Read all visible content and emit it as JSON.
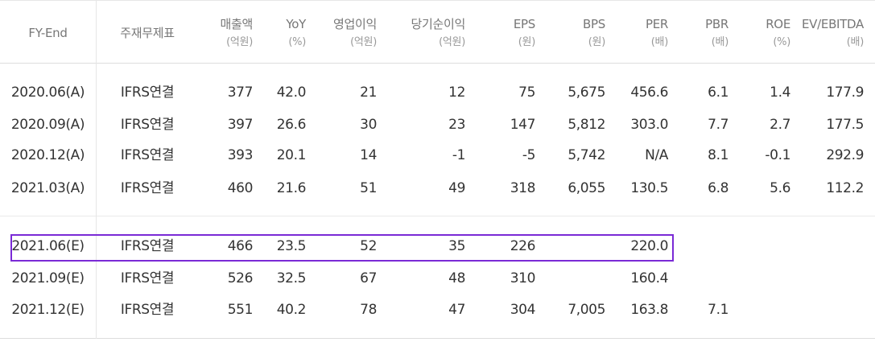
{
  "headers": {
    "fy": {
      "label": "FY-End"
    },
    "fs": {
      "label": "주재무제표"
    },
    "sales": {
      "label": "매출액",
      "unit": "(억원)"
    },
    "yoy": {
      "label": "YoY",
      "unit": "(%)"
    },
    "op": {
      "label": "영업이익",
      "unit": "(억원)"
    },
    "net": {
      "label": "당기순이익",
      "unit": "(억원)"
    },
    "eps": {
      "label": "EPS",
      "unit": "(원)"
    },
    "bps": {
      "label": "BPS",
      "unit": "(원)"
    },
    "per": {
      "label": "PER",
      "unit": "(배)"
    },
    "pbr": {
      "label": "PBR",
      "unit": "(배)"
    },
    "roe": {
      "label": "ROE",
      "unit": "(%)"
    },
    "ev": {
      "label": "EV/EBITDA",
      "unit": "(배)"
    }
  },
  "rows": [
    {
      "fy": "2020.06(A)",
      "fs": "IFRS연결",
      "sales": "377",
      "yoy": "42.0",
      "op": "21",
      "net": "12",
      "eps": "75",
      "bps": "5,675",
      "per": "456.6",
      "pbr": "6.1",
      "roe": "1.4",
      "ev": "177.9"
    },
    {
      "fy": "2020.09(A)",
      "fs": "IFRS연결",
      "sales": "397",
      "yoy": "26.6",
      "op": "30",
      "net": "23",
      "eps": "147",
      "bps": "5,812",
      "per": "303.0",
      "pbr": "7.7",
      "roe": "2.7",
      "ev": "177.5"
    },
    {
      "fy": "2020.12(A)",
      "fs": "IFRS연결",
      "sales": "393",
      "yoy": "20.1",
      "op": "14",
      "net": "-1",
      "eps": "-5",
      "bps": "5,742",
      "per": "N/A",
      "pbr": "8.1",
      "roe": "-0.1",
      "ev": "292.9"
    },
    {
      "fy": "2021.03(A)",
      "fs": "IFRS연결",
      "sales": "460",
      "yoy": "21.6",
      "op": "51",
      "net": "49",
      "eps": "318",
      "bps": "6,055",
      "per": "130.5",
      "pbr": "6.8",
      "roe": "5.6",
      "ev": "112.2"
    },
    {
      "fy": "2021.06(E)",
      "fs": "IFRS연결",
      "sales": "466",
      "yoy": "23.5",
      "op": "52",
      "net": "35",
      "eps": "226",
      "bps": "",
      "per": "220.0",
      "pbr": "",
      "roe": "",
      "ev": ""
    },
    {
      "fy": "2021.09(E)",
      "fs": "IFRS연결",
      "sales": "526",
      "yoy": "32.5",
      "op": "67",
      "net": "48",
      "eps": "310",
      "bps": "",
      "per": "160.4",
      "pbr": "",
      "roe": "",
      "ev": ""
    },
    {
      "fy": "2021.12(E)",
      "fs": "IFRS연결",
      "sales": "551",
      "yoy": "40.2",
      "op": "78",
      "net": "47",
      "eps": "304",
      "bps": "7,005",
      "per": "163.8",
      "pbr": "7.1",
      "roe": "",
      "ev": ""
    }
  ],
  "highlight_color": "#7a2ad6"
}
